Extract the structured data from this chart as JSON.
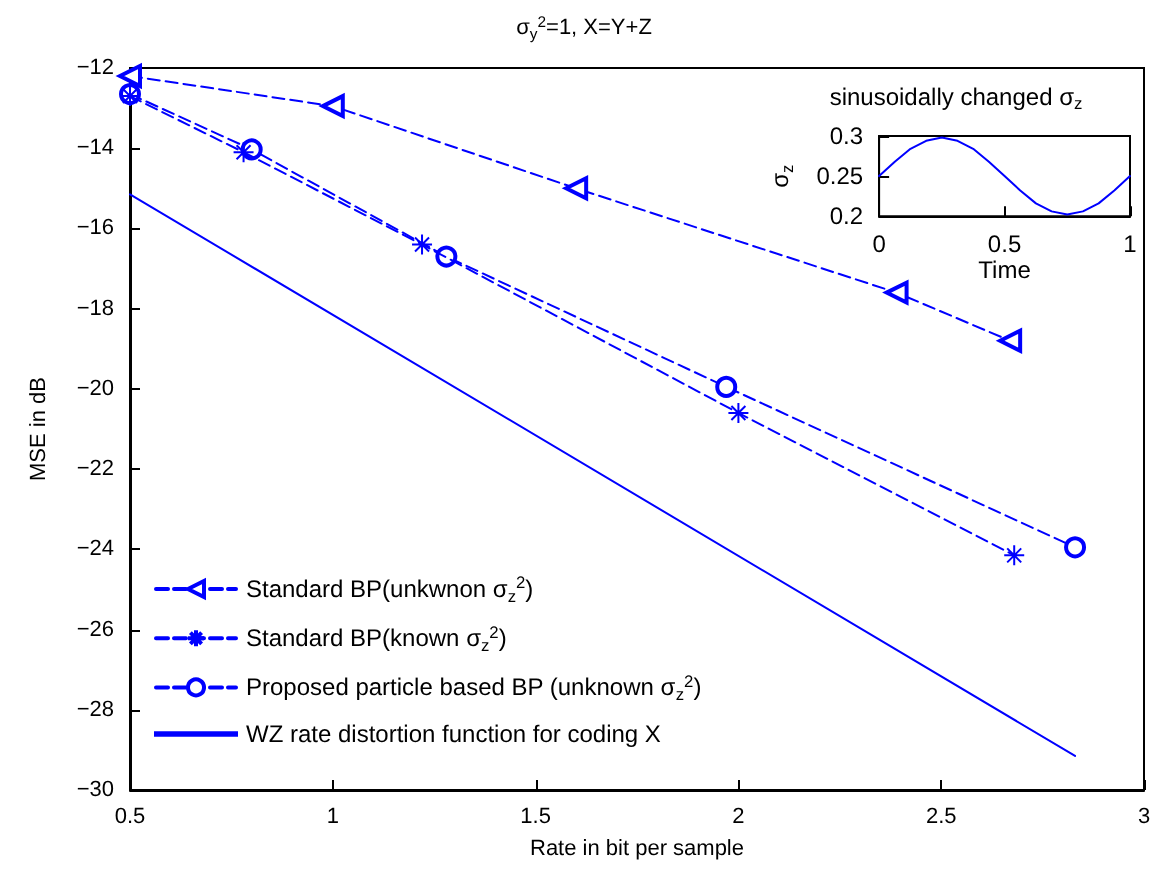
{
  "chart_data": [
    {
      "type": "line",
      "title": "σ$_{y}$$^{2}$=1, X=Y+Z",
      "xlabel": "Rate in bit per sample",
      "ylabel": "MSE in dB",
      "xlim": [
        0.5,
        3
      ],
      "xticks": [
        0.5,
        1,
        1.5,
        2,
        2.5,
        3
      ],
      "ylim": [
        -30,
        -12
      ],
      "yticks": [
        -30,
        -28,
        -26,
        -24,
        -22,
        -20,
        -18,
        -16,
        -14,
        -12
      ],
      "grid": false,
      "legend": "bottom left",
      "line_style": "dashed",
      "series": [
        {
          "name": "Standard BP(unkwnon σ$_{z}$$^{2}$)",
          "color": "#0000ff",
          "marker": "triangle",
          "x": [
            0.5,
            1.0,
            1.6,
            2.39,
            2.67
          ],
          "values": [
            -12.2,
            -12.95,
            -15.0,
            -17.6,
            -18.8
          ]
        },
        {
          "name": "Standard BP(known σ$_{z}$$^{2}$)",
          "color": "#0000ff",
          "marker": "cross",
          "x": [
            0.5,
            0.78,
            1.22,
            2.0,
            2.68
          ],
          "values": [
            -12.7,
            -14.1,
            -16.4,
            -20.6,
            -24.15
          ]
        },
        {
          "name": "Proposed particle based BP (unknown σ$_{z}$$^{2}$)",
          "color": "#0000ff",
          "marker": "circle",
          "x": [
            0.5,
            0.8,
            1.28,
            1.97,
            2.83
          ],
          "values": [
            -12.65,
            -14.03,
            -16.7,
            -19.95,
            -23.95
          ]
        },
        {
          "name": "WZ rate distortion function for coding X",
          "color": "#0000ff",
          "marker": "none",
          "line_style": "solid",
          "x": [
            0.5,
            2.83
          ],
          "values": [
            -15.15,
            -29.15
          ]
        }
      ]
    },
    {
      "type": "line",
      "title": "sinusoidally changed σ$_{z}$",
      "xlabel": "Time",
      "ylabel": "σ$_{z}$",
      "xlim": [
        0,
        1
      ],
      "xticks": [
        0,
        0.5,
        1
      ],
      "ylim": [
        0.2,
        0.3
      ],
      "yticks": [
        0.2,
        0.25,
        0.3
      ],
      "grid": false,
      "legend": false,
      "marker": "none",
      "line_style": "solid",
      "series": [
        {
          "color": "#0000ff",
          "x": [
            0,
            0.0625,
            0.125,
            0.1875,
            0.25,
            0.3125,
            0.375,
            0.4375,
            0.5,
            0.5625,
            0.625,
            0.6875,
            0.75,
            0.8125,
            0.875,
            0.9375,
            1
          ],
          "values": [
            0.25,
            0.268,
            0.284,
            0.294,
            0.298,
            0.294,
            0.284,
            0.268,
            0.25,
            0.232,
            0.216,
            0.206,
            0.202,
            0.206,
            0.216,
            0.232,
            0.25
          ]
        }
      ]
    }
  ]
}
